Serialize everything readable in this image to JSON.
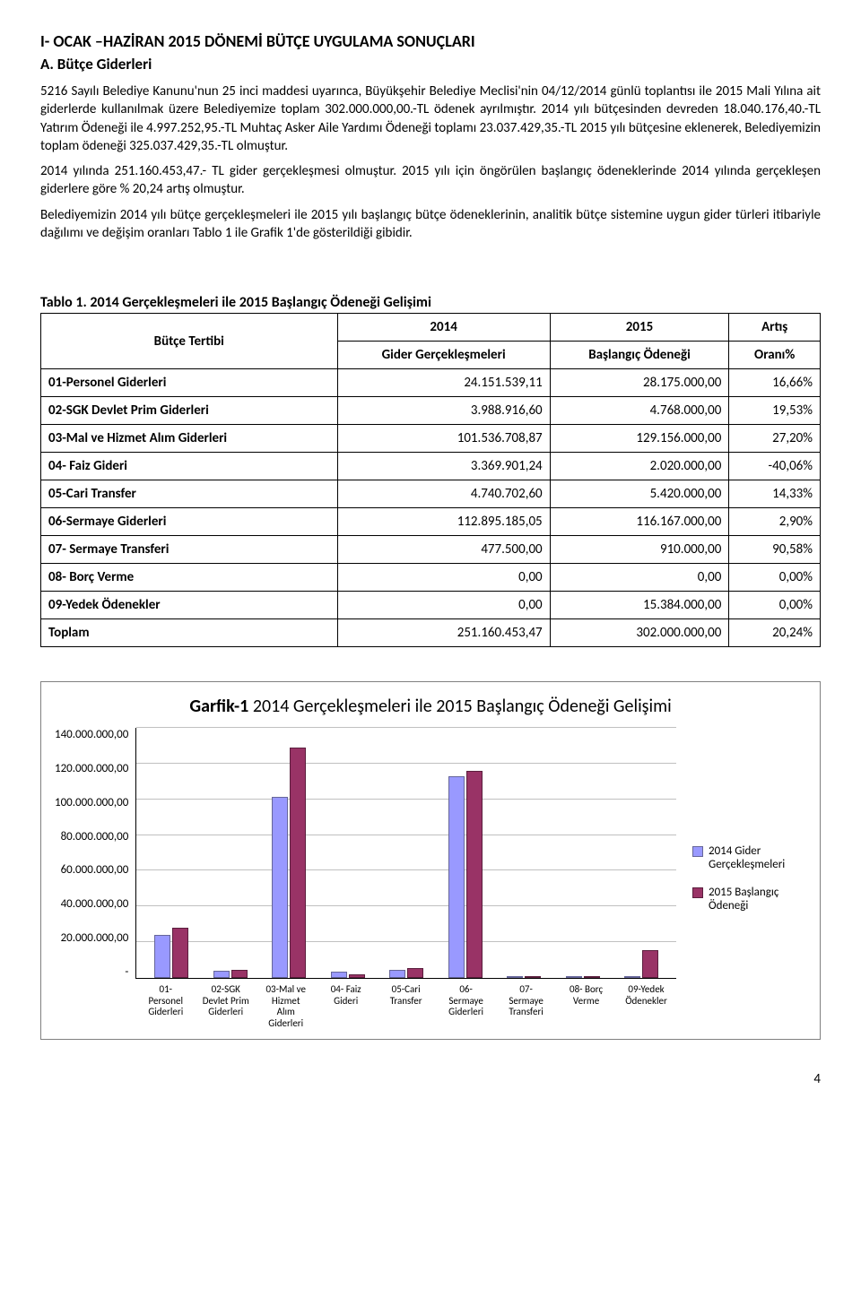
{
  "heading": "I- OCAK –HAZİRAN 2015 DÖNEMİ BÜTÇE UYGULAMA SONUÇLARI",
  "subhead": "A. Bütçe Giderleri",
  "para1": "5216 Sayılı Belediye Kanunu'nun 25 inci maddesi uyarınca, Büyükşehir Belediye Meclisi'nin 04/12/2014 günlü toplantısı ile 2015 Mali Yılına ait giderlerde kullanılmak üzere Belediyemize toplam 302.000.000,00.-TL ödenek ayrılmıştır. 2014 yılı bütçesinden devreden 18.040.176,40.-TL Yatırım Ödeneği ile 4.997.252,95.-TL Muhtaç Asker Aile Yardımı Ödeneği toplamı 23.037.429,35.-TL 2015 yılı bütçesine eklenerek, Belediyemizin toplam ödeneği 325.037.429,35.-TL olmuştur.",
  "para2": "2014 yılında 251.160.453,47.- TL gider gerçekleşmesi olmuştur. 2015 yılı için öngörülen başlangıç ödeneklerinde 2014 yılında gerçekleşen giderlere göre % 20,24 artış olmuştur.",
  "para3": "Belediyemizin 2014 yılı bütçe gerçekleşmeleri ile 2015 yılı başlangıç bütçe ödeneklerinin, analitik bütçe sistemine uygun gider türleri itibariyle dağılımı ve değişim oranları Tablo 1 ile Grafik 1'de gösterildiği gibidir.",
  "table": {
    "title": "Tablo 1.    2014 Gerçekleşmeleri ile 2015 Başlangıç Ödeneği Gelişimi",
    "h_tertibi": "Bütçe Tertibi",
    "h_2014": "2014",
    "h_2015": "2015",
    "h_artis": "Artış",
    "h_gider": "Gider Gerçekleşmeleri",
    "h_baslangic": "Başlangıç Ödeneği",
    "h_orani": "Oranı%",
    "rows": [
      {
        "label": "01-Personel Giderleri",
        "v2014": "24.151.539,11",
        "v2015": "28.175.000,00",
        "pct": "16,66%"
      },
      {
        "label": "02-SGK Devlet Prim Giderleri",
        "v2014": "3.988.916,60",
        "v2015": "4.768.000,00",
        "pct": "19,53%"
      },
      {
        "label": "03-Mal ve Hizmet Alım Giderleri",
        "v2014": "101.536.708,87",
        "v2015": "129.156.000,00",
        "pct": "27,20%"
      },
      {
        "label": "04- Faiz Gideri",
        "v2014": "3.369.901,24",
        "v2015": "2.020.000,00",
        "pct": "-40,06%"
      },
      {
        "label": "05-Cari Transfer",
        "v2014": "4.740.702,60",
        "v2015": "5.420.000,00",
        "pct": "14,33%"
      },
      {
        "label": "06-Sermaye Giderleri",
        "v2014": "112.895.185,05",
        "v2015": "116.167.000,00",
        "pct": "2,90%"
      },
      {
        "label": "07- Sermaye Transferi",
        "v2014": "477.500,00",
        "v2015": "910.000,00",
        "pct": "90,58%"
      },
      {
        "label": "08- Borç Verme",
        "v2014": "0,00",
        "v2015": "0,00",
        "pct": "0,00%"
      },
      {
        "label": "09-Yedek Ödenekler",
        "v2014": "0,00",
        "v2015": "15.384.000,00",
        "pct": "0,00%"
      },
      {
        "label": "Toplam",
        "v2014": "251.160.453,47",
        "v2015": "302.000.000,00",
        "pct": "20,24%"
      }
    ]
  },
  "chart": {
    "type": "bar",
    "title_prefix": "Garfik-1",
    "title_rest": "   2014 Gerçekleşmeleri ile 2015 Başlangıç Ödeneği Gelişimi",
    "ymax": 140000000,
    "ystep": 20000000,
    "y_ticks": [
      "140.000.000,00",
      "120.000.000,00",
      "100.000.000,00",
      "80.000.000,00",
      "60.000.000,00",
      "40.000.000,00",
      "20.000.000,00",
      "-"
    ],
    "series": [
      {
        "name": "2014 Gider Gerçekleşmeleri",
        "color": "#9999ff",
        "border": "#666699"
      },
      {
        "name": "2015 Başlangıç Ödeneği",
        "color": "#993366",
        "border": "#5a1e3d"
      }
    ],
    "categories": [
      {
        "label": "01-\nPersonel\nGiderleri",
        "a": 24151539,
        "b": 28175000
      },
      {
        "label": "02-SGK\nDevlet Prim\nGiderleri",
        "a": 3988917,
        "b": 4768000
      },
      {
        "label": "03-Mal ve\nHizmet\nAlım\nGiderleri",
        "a": 101536709,
        "b": 129156000
      },
      {
        "label": "04- Faiz\nGideri",
        "a": 3369901,
        "b": 2020000
      },
      {
        "label": "05-Cari\nTransfer",
        "a": 4740703,
        "b": 5420000
      },
      {
        "label": "06-\nSermaye\nGiderleri",
        "a": 112895185,
        "b": 116167000
      },
      {
        "label": "07-\nSermaye\nTransferi",
        "a": 477500,
        "b": 910000
      },
      {
        "label": "08- Borç\nVerme",
        "a": 0,
        "b": 0
      },
      {
        "label": "09-Yedek\nÖdenekler",
        "a": 0,
        "b": 15384000
      }
    ]
  },
  "page_num": "4"
}
